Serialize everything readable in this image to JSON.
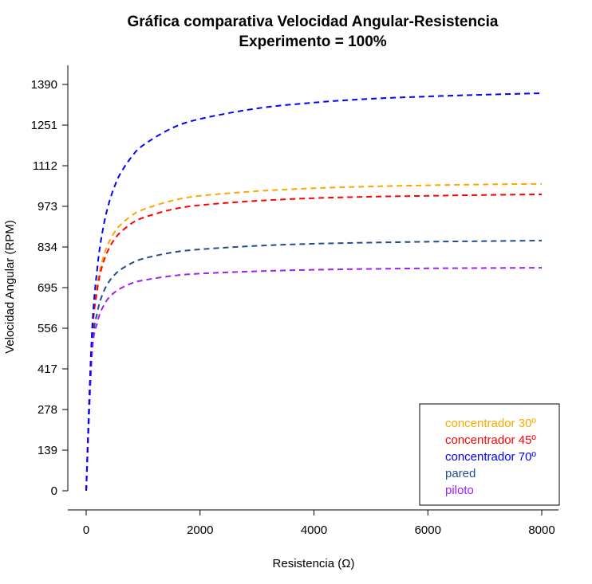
{
  "chart_data": {
    "type": "line",
    "title": "Gráfica comparativa Velocidad Angular-Resistencia",
    "subtitle": "Experimento = 100%",
    "xlabel": "Resistencia (Ω)",
    "ylabel": "Velocidad Angular (RPM)",
    "xlim": [
      0,
      8000
    ],
    "ylim": [
      0,
      1390
    ],
    "x_ticks": [
      0,
      2000,
      4000,
      6000,
      8000
    ],
    "y_ticks": [
      0,
      139,
      278,
      417,
      556,
      695,
      834,
      973,
      1112,
      1251,
      1390
    ],
    "grid": false,
    "legend_position": "bottom-right",
    "line_style": "dashed",
    "series": [
      {
        "name": "concentrador 30º",
        "color": "#FFA500",
        "x": [
          0,
          100,
          200,
          300,
          400,
          500,
          600,
          800,
          1000,
          1500,
          2000,
          3000,
          4000,
          5000,
          6000,
          7000,
          8000
        ],
        "values": [
          0,
          521,
          710,
          799,
          851,
          885,
          909,
          942,
          962,
          992,
          1009,
          1025,
          1035,
          1041,
          1045,
          1048,
          1050
        ]
      },
      {
        "name": "concentrador 45º",
        "color": "#FF0000",
        "x": [
          0,
          100,
          200,
          300,
          400,
          500,
          600,
          800,
          1000,
          1500,
          2000,
          3000,
          4000,
          5000,
          6000,
          7000,
          8000
        ],
        "values": [
          0,
          512,
          695,
          780,
          829,
          861,
          884,
          915,
          934,
          962,
          977,
          992,
          1001,
          1006,
          1009,
          1012,
          1014
        ]
      },
      {
        "name": "concentrador 70º",
        "color": "#0000FF",
        "x": [
          0,
          100,
          200,
          300,
          400,
          500,
          600,
          800,
          1000,
          1500,
          2000,
          3000,
          4000,
          5000,
          6000,
          7000,
          8000
        ],
        "values": [
          0,
          535,
          770,
          901,
          984,
          1042,
          1085,
          1143,
          1182,
          1240,
          1272,
          1308,
          1328,
          1341,
          1349,
          1355,
          1360
        ]
      },
      {
        "name": "pared",
        "color": "#1F4E8C",
        "x": [
          0,
          100,
          200,
          300,
          400,
          500,
          600,
          800,
          1000,
          1500,
          2000,
          3000,
          4000,
          5000,
          6000,
          7000,
          8000
        ],
        "values": [
          0,
          476,
          614,
          678,
          715,
          739,
          756,
          779,
          794,
          815,
          826,
          838,
          845,
          849,
          852,
          854,
          856
        ]
      },
      {
        "name": "piloto",
        "color": "#A020F0",
        "x": [
          0,
          100,
          200,
          300,
          400,
          500,
          600,
          800,
          1000,
          1500,
          2000,
          3000,
          4000,
          5000,
          6000,
          7000,
          8000
        ],
        "values": [
          0,
          460,
          579,
          631,
          661,
          679,
          692,
          710,
          720,
          735,
          743,
          751,
          756,
          759,
          761,
          762,
          763
        ]
      }
    ]
  }
}
